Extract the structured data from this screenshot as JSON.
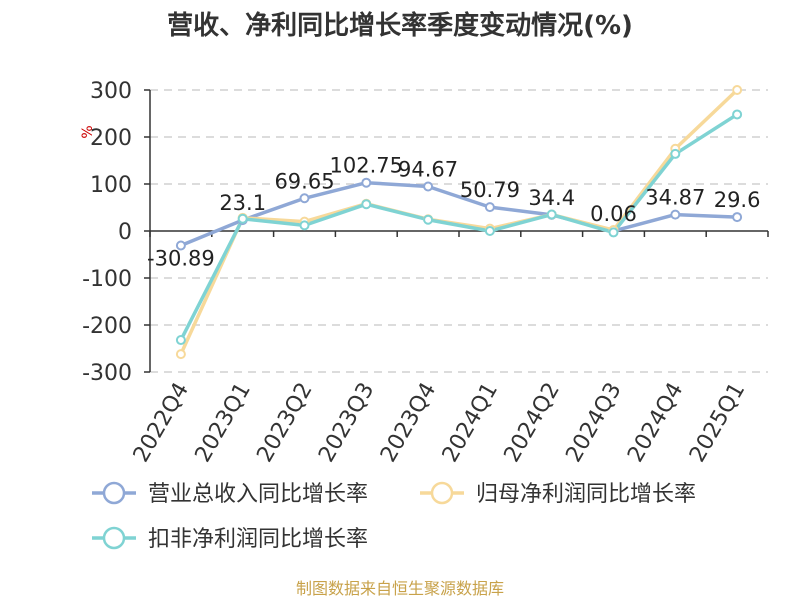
{
  "chart_data": {
    "type": "line",
    "title": "营收、净利同比增长率季度变动情况(%)",
    "ylabel": "%",
    "xlabel": "",
    "categories": [
      "2022Q4",
      "2023Q1",
      "2023Q2",
      "2023Q3",
      "2023Q4",
      "2024Q1",
      "2024Q2",
      "2024Q3",
      "2024Q4",
      "2025Q1"
    ],
    "ylim": [
      -300,
      300
    ],
    "yticks": [
      -300,
      -200,
      -100,
      0,
      100,
      200,
      300
    ],
    "grid": true,
    "legend_position": "bottom",
    "series": [
      {
        "name": "营业总收入同比增长率",
        "color": "#8fa8d6",
        "values": [
          -30.89,
          23.1,
          69.65,
          102.75,
          94.67,
          50.79,
          34.4,
          0.06,
          34.87,
          29.6
        ],
        "labels": [
          "-30.89",
          "23.1",
          "69.65",
          "102.75",
          "94.67",
          "50.79",
          "34.4",
          "0.06",
          "34.87",
          "29.6"
        ]
      },
      {
        "name": "归母净利润同比增长率",
        "color": "#f7d99a",
        "values": [
          -262,
          28,
          20,
          58,
          25,
          5,
          35,
          2,
          175,
          300
        ]
      },
      {
        "name": "扣非净利润同比增长率",
        "color": "#7fd3d3",
        "values": [
          -232,
          26,
          12,
          57,
          24,
          0,
          35,
          -3,
          164,
          248
        ]
      }
    ]
  },
  "footer": {
    "source": "制图数据来自恒生聚源数据库"
  }
}
